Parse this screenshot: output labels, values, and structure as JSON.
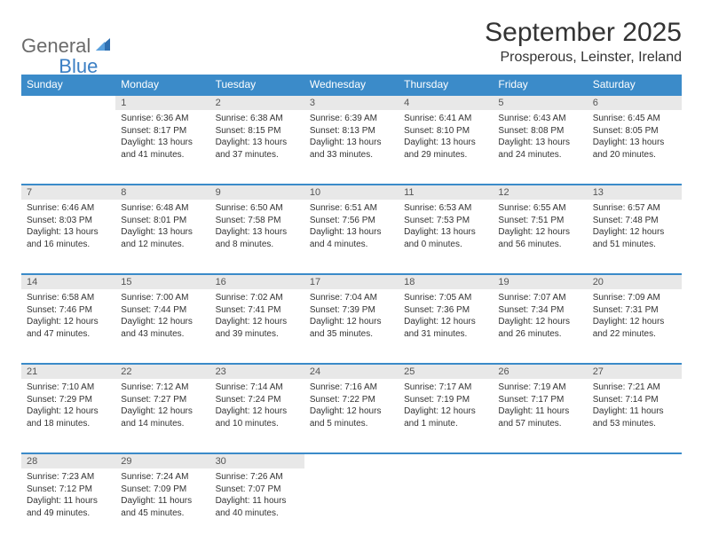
{
  "brand": {
    "part1": "General",
    "part2": "Blue"
  },
  "title": "September 2025",
  "location": "Prosperous, Leinster, Ireland",
  "colors": {
    "header_bg": "#3b8bc9",
    "header_text": "#ffffff",
    "daynum_bg": "#e8e8e8",
    "row_border": "#3b8bc9",
    "text": "#333333",
    "logo_gray": "#6b6b6b",
    "logo_blue": "#3b7fc4"
  },
  "day_headers": [
    "Sunday",
    "Monday",
    "Tuesday",
    "Wednesday",
    "Thursday",
    "Friday",
    "Saturday"
  ],
  "weeks": [
    [
      null,
      {
        "n": "1",
        "sunrise": "Sunrise: 6:36 AM",
        "sunset": "Sunset: 8:17 PM",
        "daylight": "Daylight: 13 hours and 41 minutes."
      },
      {
        "n": "2",
        "sunrise": "Sunrise: 6:38 AM",
        "sunset": "Sunset: 8:15 PM",
        "daylight": "Daylight: 13 hours and 37 minutes."
      },
      {
        "n": "3",
        "sunrise": "Sunrise: 6:39 AM",
        "sunset": "Sunset: 8:13 PM",
        "daylight": "Daylight: 13 hours and 33 minutes."
      },
      {
        "n": "4",
        "sunrise": "Sunrise: 6:41 AM",
        "sunset": "Sunset: 8:10 PM",
        "daylight": "Daylight: 13 hours and 29 minutes."
      },
      {
        "n": "5",
        "sunrise": "Sunrise: 6:43 AM",
        "sunset": "Sunset: 8:08 PM",
        "daylight": "Daylight: 13 hours and 24 minutes."
      },
      {
        "n": "6",
        "sunrise": "Sunrise: 6:45 AM",
        "sunset": "Sunset: 8:05 PM",
        "daylight": "Daylight: 13 hours and 20 minutes."
      }
    ],
    [
      {
        "n": "7",
        "sunrise": "Sunrise: 6:46 AM",
        "sunset": "Sunset: 8:03 PM",
        "daylight": "Daylight: 13 hours and 16 minutes."
      },
      {
        "n": "8",
        "sunrise": "Sunrise: 6:48 AM",
        "sunset": "Sunset: 8:01 PM",
        "daylight": "Daylight: 13 hours and 12 minutes."
      },
      {
        "n": "9",
        "sunrise": "Sunrise: 6:50 AM",
        "sunset": "Sunset: 7:58 PM",
        "daylight": "Daylight: 13 hours and 8 minutes."
      },
      {
        "n": "10",
        "sunrise": "Sunrise: 6:51 AM",
        "sunset": "Sunset: 7:56 PM",
        "daylight": "Daylight: 13 hours and 4 minutes."
      },
      {
        "n": "11",
        "sunrise": "Sunrise: 6:53 AM",
        "sunset": "Sunset: 7:53 PM",
        "daylight": "Daylight: 13 hours and 0 minutes."
      },
      {
        "n": "12",
        "sunrise": "Sunrise: 6:55 AM",
        "sunset": "Sunset: 7:51 PM",
        "daylight": "Daylight: 12 hours and 56 minutes."
      },
      {
        "n": "13",
        "sunrise": "Sunrise: 6:57 AM",
        "sunset": "Sunset: 7:48 PM",
        "daylight": "Daylight: 12 hours and 51 minutes."
      }
    ],
    [
      {
        "n": "14",
        "sunrise": "Sunrise: 6:58 AM",
        "sunset": "Sunset: 7:46 PM",
        "daylight": "Daylight: 12 hours and 47 minutes."
      },
      {
        "n": "15",
        "sunrise": "Sunrise: 7:00 AM",
        "sunset": "Sunset: 7:44 PM",
        "daylight": "Daylight: 12 hours and 43 minutes."
      },
      {
        "n": "16",
        "sunrise": "Sunrise: 7:02 AM",
        "sunset": "Sunset: 7:41 PM",
        "daylight": "Daylight: 12 hours and 39 minutes."
      },
      {
        "n": "17",
        "sunrise": "Sunrise: 7:04 AM",
        "sunset": "Sunset: 7:39 PM",
        "daylight": "Daylight: 12 hours and 35 minutes."
      },
      {
        "n": "18",
        "sunrise": "Sunrise: 7:05 AM",
        "sunset": "Sunset: 7:36 PM",
        "daylight": "Daylight: 12 hours and 31 minutes."
      },
      {
        "n": "19",
        "sunrise": "Sunrise: 7:07 AM",
        "sunset": "Sunset: 7:34 PM",
        "daylight": "Daylight: 12 hours and 26 minutes."
      },
      {
        "n": "20",
        "sunrise": "Sunrise: 7:09 AM",
        "sunset": "Sunset: 7:31 PM",
        "daylight": "Daylight: 12 hours and 22 minutes."
      }
    ],
    [
      {
        "n": "21",
        "sunrise": "Sunrise: 7:10 AM",
        "sunset": "Sunset: 7:29 PM",
        "daylight": "Daylight: 12 hours and 18 minutes."
      },
      {
        "n": "22",
        "sunrise": "Sunrise: 7:12 AM",
        "sunset": "Sunset: 7:27 PM",
        "daylight": "Daylight: 12 hours and 14 minutes."
      },
      {
        "n": "23",
        "sunrise": "Sunrise: 7:14 AM",
        "sunset": "Sunset: 7:24 PM",
        "daylight": "Daylight: 12 hours and 10 minutes."
      },
      {
        "n": "24",
        "sunrise": "Sunrise: 7:16 AM",
        "sunset": "Sunset: 7:22 PM",
        "daylight": "Daylight: 12 hours and 5 minutes."
      },
      {
        "n": "25",
        "sunrise": "Sunrise: 7:17 AM",
        "sunset": "Sunset: 7:19 PM",
        "daylight": "Daylight: 12 hours and 1 minute."
      },
      {
        "n": "26",
        "sunrise": "Sunrise: 7:19 AM",
        "sunset": "Sunset: 7:17 PM",
        "daylight": "Daylight: 11 hours and 57 minutes."
      },
      {
        "n": "27",
        "sunrise": "Sunrise: 7:21 AM",
        "sunset": "Sunset: 7:14 PM",
        "daylight": "Daylight: 11 hours and 53 minutes."
      }
    ],
    [
      {
        "n": "28",
        "sunrise": "Sunrise: 7:23 AM",
        "sunset": "Sunset: 7:12 PM",
        "daylight": "Daylight: 11 hours and 49 minutes."
      },
      {
        "n": "29",
        "sunrise": "Sunrise: 7:24 AM",
        "sunset": "Sunset: 7:09 PM",
        "daylight": "Daylight: 11 hours and 45 minutes."
      },
      {
        "n": "30",
        "sunrise": "Sunrise: 7:26 AM",
        "sunset": "Sunset: 7:07 PM",
        "daylight": "Daylight: 11 hours and 40 minutes."
      },
      null,
      null,
      null,
      null
    ]
  ]
}
